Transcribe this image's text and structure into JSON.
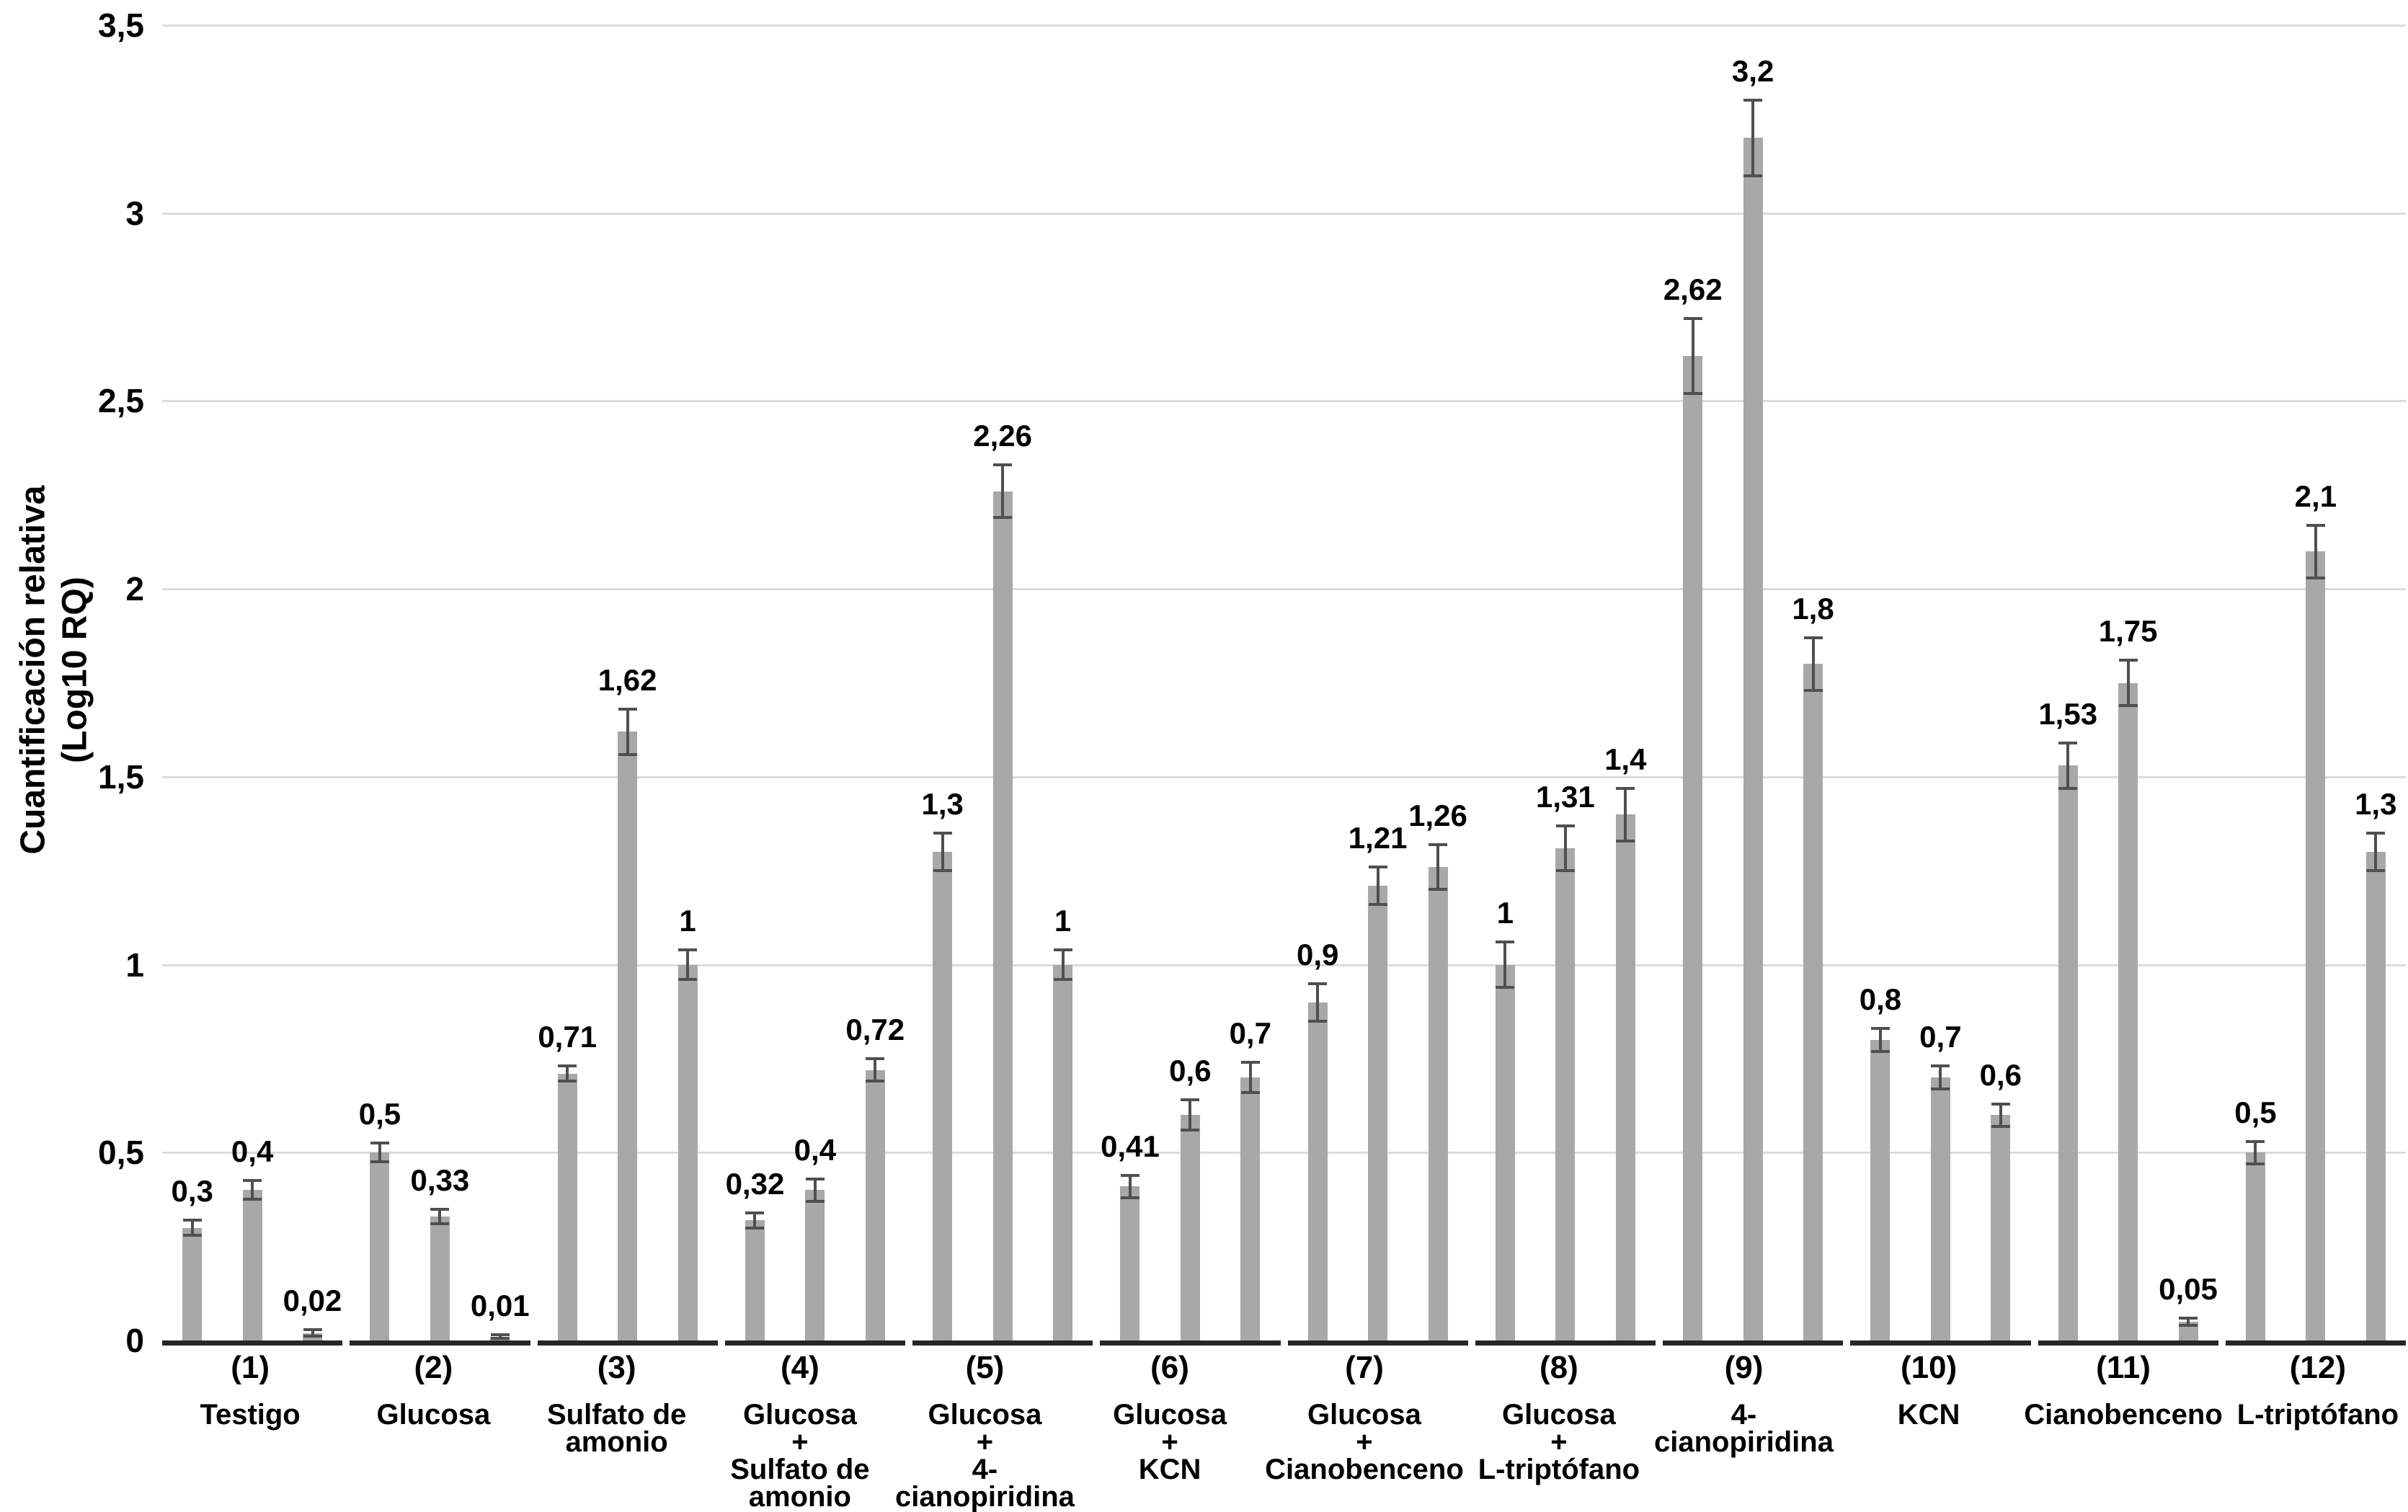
{
  "chart_data": {
    "type": "bar",
    "title": "",
    "ylabel_line1": "Cuantificación relativa",
    "ylabel_line2": "(Log10 RQ)",
    "xlabel": "",
    "ylim": [
      0,
      3.5
    ],
    "ytick_interval": 0.5,
    "grid": "horizontal",
    "legend": "none",
    "decimal_separator": ",",
    "bars_per_group": 3,
    "yticks": [
      {
        "label": "3,5",
        "value": 3.5
      },
      {
        "label": "3",
        "value": 3.0
      },
      {
        "label": "2,5",
        "value": 2.5
      },
      {
        "label": "2",
        "value": 2.0
      },
      {
        "label": "1,5",
        "value": 1.5
      },
      {
        "label": "1",
        "value": 1.0
      },
      {
        "label": "0,5",
        "value": 0.5
      },
      {
        "label": "0",
        "value": 0.0
      }
    ],
    "groups": [
      {
        "number": "(1)",
        "name": "Testigo",
        "name_lines": [
          "Testigo"
        ],
        "bars": [
          {
            "value": 0.3,
            "label": "0,3",
            "error": 0.02
          },
          {
            "value": 0.4,
            "label": "0,4",
            "error": 0.025
          },
          {
            "value": 0.02,
            "label": "0,02",
            "error": 0.008
          }
        ]
      },
      {
        "number": "(2)",
        "name": "Glucosa",
        "name_lines": [
          "Glucosa"
        ],
        "bars": [
          {
            "value": 0.5,
            "label": "0,5",
            "error": 0.025
          },
          {
            "value": 0.33,
            "label": "0,33",
            "error": 0.02
          },
          {
            "value": 0.01,
            "label": "0,01",
            "error": 0.005
          }
        ]
      },
      {
        "number": "(3)",
        "name": "Sulfato de amonio",
        "name_lines": [
          "Sulfato de",
          "amonio"
        ],
        "bars": [
          {
            "value": 0.71,
            "label": "0,71",
            "error": 0.02
          },
          {
            "value": 1.62,
            "label": "1,62",
            "error": 0.06
          },
          {
            "value": 1.0,
            "label": "1",
            "error": 0.04
          }
        ]
      },
      {
        "number": "(4)",
        "name": "Glucosa + Sulfato de amonio",
        "name_lines": [
          "Glucosa",
          "+",
          "Sulfato de",
          "amonio"
        ],
        "bars": [
          {
            "value": 0.32,
            "label": "0,32",
            "error": 0.02
          },
          {
            "value": 0.4,
            "label": "0,4",
            "error": 0.03
          },
          {
            "value": 0.72,
            "label": "0,72",
            "error": 0.03
          }
        ]
      },
      {
        "number": "(5)",
        "name": "Glucosa + 4-cianopiridina",
        "name_lines": [
          "Glucosa",
          "+",
          "4-cianopiridina"
        ],
        "bars": [
          {
            "value": 1.3,
            "label": "1,3",
            "error": 0.05
          },
          {
            "value": 2.26,
            "label": "2,26",
            "error": 0.07
          },
          {
            "value": 1.0,
            "label": "1",
            "error": 0.04
          }
        ]
      },
      {
        "number": "(6)",
        "name": "Glucosa + KCN",
        "name_lines": [
          "Glucosa",
          "+",
          "KCN"
        ],
        "bars": [
          {
            "value": 0.41,
            "label": "0,41",
            "error": 0.03
          },
          {
            "value": 0.6,
            "label": "0,6",
            "error": 0.04
          },
          {
            "value": 0.7,
            "label": "0,7",
            "error": 0.04
          }
        ]
      },
      {
        "number": "(7)",
        "name": "Glucosa + Cianobenceno",
        "name_lines": [
          "Glucosa",
          "+",
          "Cianobenceno"
        ],
        "bars": [
          {
            "value": 0.9,
            "label": "0,9",
            "error": 0.05
          },
          {
            "value": 1.21,
            "label": "1,21",
            "error": 0.05
          },
          {
            "value": 1.26,
            "label": "1,26",
            "error": 0.06
          }
        ]
      },
      {
        "number": "(8)",
        "name": "Glucosa + L-triptófano",
        "name_lines": [
          "Glucosa",
          "+",
          "L-triptófano"
        ],
        "bars": [
          {
            "value": 1.0,
            "label": "1",
            "error": 0.06
          },
          {
            "value": 1.31,
            "label": "1,31",
            "error": 0.06
          },
          {
            "value": 1.4,
            "label": "1,4",
            "error": 0.07
          }
        ]
      },
      {
        "number": "(9)",
        "name": "4-cianopiridina",
        "name_lines": [
          "4-cianopiridina"
        ],
        "bars": [
          {
            "value": 2.62,
            "label": "2,62",
            "error": 0.1
          },
          {
            "value": 3.2,
            "label": "3,2",
            "error": 0.1
          },
          {
            "value": 1.8,
            "label": "1,8",
            "error": 0.07
          }
        ]
      },
      {
        "number": "(10)",
        "name": "KCN",
        "name_lines": [
          "KCN"
        ],
        "bars": [
          {
            "value": 0.8,
            "label": "0,8",
            "error": 0.03
          },
          {
            "value": 0.7,
            "label": "0,7",
            "error": 0.03
          },
          {
            "value": 0.6,
            "label": "0,6",
            "error": 0.03
          }
        ]
      },
      {
        "number": "(11)",
        "name": "Cianobenceno",
        "name_lines": [
          "Cianobenceno"
        ],
        "bars": [
          {
            "value": 1.53,
            "label": "1,53",
            "error": 0.06
          },
          {
            "value": 1.75,
            "label": "1,75",
            "error": 0.06
          },
          {
            "value": 0.05,
            "label": "0,05",
            "error": 0.01
          }
        ]
      },
      {
        "number": "(12)",
        "name": "L-triptófano",
        "name_lines": [
          "L-triptófano"
        ],
        "bars": [
          {
            "value": 0.5,
            "label": "0,5",
            "error": 0.03
          },
          {
            "value": 2.1,
            "label": "2,1",
            "error": 0.07
          },
          {
            "value": 1.3,
            "label": "1,3",
            "error": 0.05
          }
        ]
      }
    ],
    "colors": {
      "bar": "#a8a8a8",
      "error_bar": "#4f4f4f",
      "gridline": "#dcdcdc",
      "baseline": "#262626",
      "text": "#000000",
      "background": "#ffffff"
    }
  }
}
